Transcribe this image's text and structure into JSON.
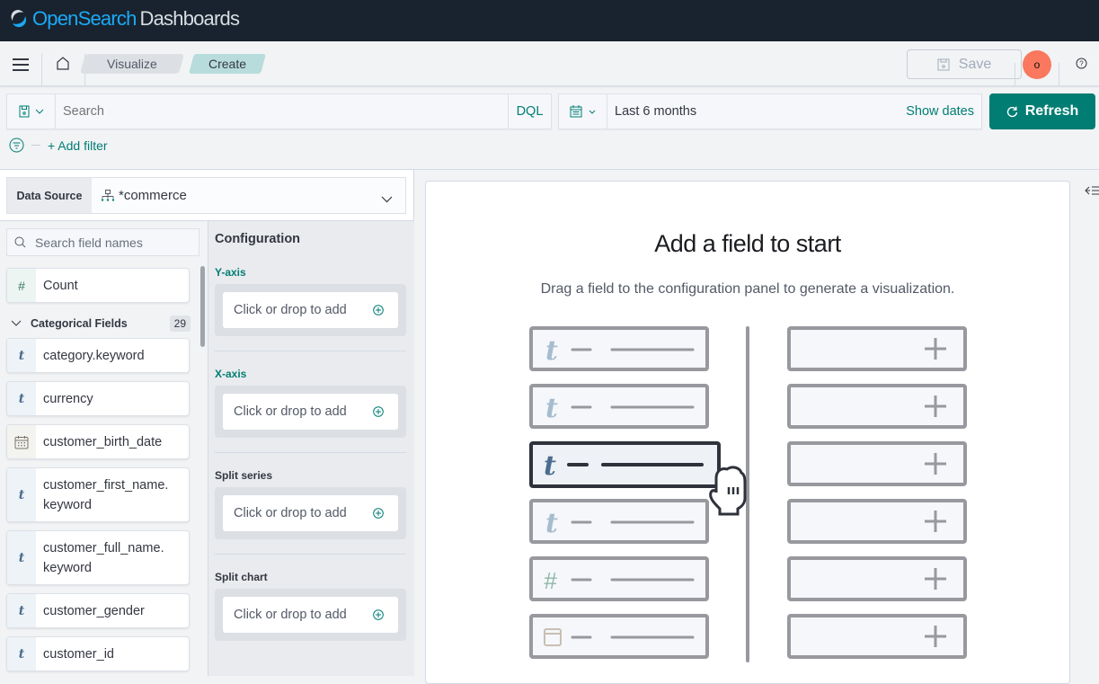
{
  "header": {
    "logo_part1": "OpenSearch",
    "logo_part2": "Dashboards"
  },
  "nav": {
    "breadcrumbs": [
      "Visualize",
      "Create"
    ],
    "save_label": "Save",
    "avatar_initial": "o"
  },
  "query": {
    "search_placeholder": "Search",
    "language": "DQL",
    "date_range": "Last 6 months",
    "show_dates": "Show dates",
    "refresh_label": "Refresh",
    "add_filter": "+ Add filter"
  },
  "datasource": {
    "label": "Data Source",
    "value": "*commerce"
  },
  "fields": {
    "search_placeholder": "Search field names",
    "count_field": {
      "type": "#",
      "name": "Count"
    },
    "group_label": "Categorical Fields",
    "group_count": "29",
    "items": [
      {
        "type": "t",
        "name": "category.keyword"
      },
      {
        "type": "t",
        "name": "currency"
      },
      {
        "type": "date",
        "name": "customer_birth_date"
      },
      {
        "type": "t",
        "name": "customer_first_name.\nkeyword"
      },
      {
        "type": "t",
        "name": "customer_full_name.\nkeyword"
      },
      {
        "type": "t",
        "name": "customer_gender"
      },
      {
        "type": "t",
        "name": "customer_id"
      }
    ]
  },
  "config": {
    "title": "Configuration",
    "sections": [
      {
        "label": "Y-axis",
        "placeholder": "Click or drop to add"
      },
      {
        "label": "X-axis",
        "placeholder": "Click or drop to add"
      },
      {
        "label": "Split series",
        "placeholder": "Click or drop to add"
      },
      {
        "label": "Split chart",
        "placeholder": "Click or drop to add"
      }
    ]
  },
  "workspace": {
    "title": "Add a field to start",
    "subtitle": "Drag a field to the configuration panel to generate a visualization."
  },
  "colors": {
    "accent": "#017d73",
    "header": "#18232f",
    "avatar": "#f9785e"
  }
}
